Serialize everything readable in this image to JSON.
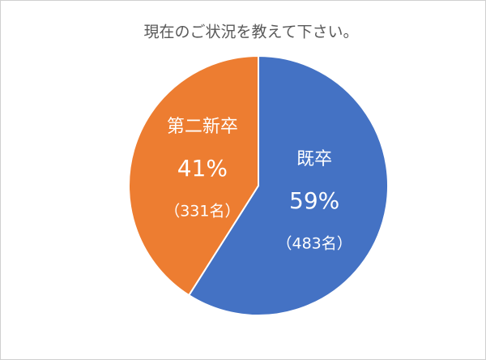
{
  "chart_data": {
    "type": "pie",
    "title": "現在のご状況を教えて下さい。",
    "categories": [
      "既卒",
      "第二新卒"
    ],
    "values": [
      59,
      41
    ],
    "value_labels": [
      "59%",
      "41%"
    ],
    "annotations": [
      "（483名）",
      "（331名）"
    ],
    "colors": [
      "#4472c4",
      "#ed7d31"
    ]
  }
}
